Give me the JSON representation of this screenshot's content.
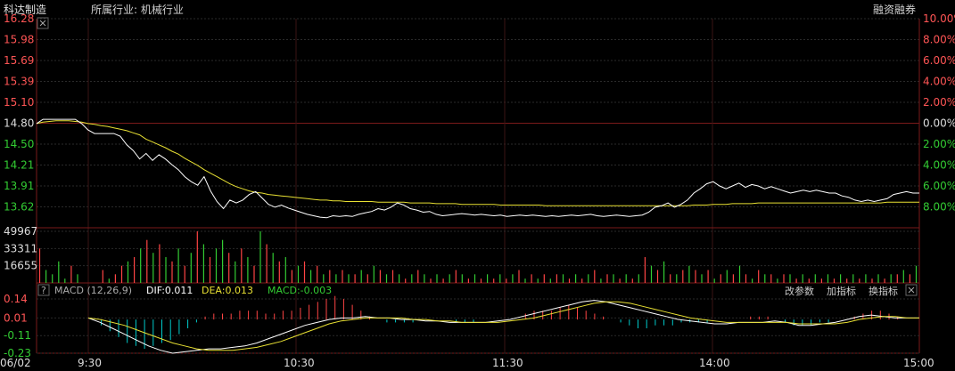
{
  "header": {
    "stock_name": "科达制造",
    "industry": "所属行业: 机械行业",
    "margin_label": "融资融券",
    "close_icon": "close-icon"
  },
  "price_axis": {
    "left_labels": [
      "16.28",
      "15.98",
      "15.69",
      "15.39",
      "15.10",
      "14.80",
      "14.50",
      "14.21",
      "13.91",
      "13.62"
    ],
    "right_labels": [
      "10.00%",
      "8.00%",
      "6.00%",
      "4.00%",
      "2.00%",
      "0.00%",
      "2.00%",
      "4.00%",
      "6.00%",
      "8.00%"
    ],
    "prev_close": 14.8
  },
  "volume_axis": {
    "labels": [
      "49967",
      "33311",
      "16655"
    ],
    "max": 49967
  },
  "macd_panel": {
    "help_label": "?",
    "title": "MACD (12,26,9)",
    "dif": "DIF:0.011",
    "dea": "DEA:0.013",
    "macd": "MACD:-0.003",
    "buttons": [
      "改参数",
      "加指标",
      "换指标"
    ],
    "axis_labels": [
      "0.14",
      "0.01",
      "-0.11",
      "-0.23"
    ],
    "range": [
      -0.23,
      0.14
    ]
  },
  "time_axis": {
    "labels": [
      "06/02",
      "9:30",
      "10:30",
      "11:30",
      "14:00",
      "15:00"
    ]
  },
  "colors": {
    "price_line": "#ffffff",
    "avg_line": "#e8e033",
    "up": "#ff4444",
    "down": "#33cc33",
    "dif_line": "#ffffff",
    "dea_line": "#e8e033",
    "hist_pos": "#ff4444",
    "hist_neg": "#00cccc",
    "grid": "#2a2a2a",
    "grid_strong": "#5a1010"
  },
  "chart_data": {
    "type": "line",
    "series": [
      {
        "values": [
          14.8,
          14.86,
          14.86,
          14.86,
          14.86,
          14.86,
          14.86,
          14.8,
          14.71,
          14.66,
          14.66,
          14.66,
          14.66,
          14.62,
          14.5,
          14.42,
          14.3,
          14.38,
          14.28,
          14.36,
          14.3,
          14.22,
          14.15,
          14.05,
          13.98,
          13.93,
          14.05,
          13.85,
          13.7,
          13.6,
          13.72,
          13.68,
          13.72,
          13.8,
          13.84,
          13.75,
          13.66,
          13.62,
          13.65,
          13.61,
          13.58,
          13.55,
          13.52,
          13.5,
          13.48,
          13.47,
          13.5,
          13.49,
          13.5,
          13.49,
          13.52,
          13.54,
          13.56,
          13.6,
          13.58,
          13.62,
          13.68,
          13.65,
          13.6,
          13.58,
          13.55,
          13.56,
          13.52,
          13.5,
          13.51,
          13.52,
          13.53,
          13.52,
          13.51,
          13.52,
          13.51,
          13.5,
          13.51,
          13.49,
          13.5,
          13.51,
          13.5,
          13.51,
          13.5,
          13.49,
          13.5,
          13.49,
          13.5,
          13.51,
          13.5,
          13.51,
          13.52,
          13.5,
          13.49,
          13.5,
          13.51,
          13.5,
          13.49,
          13.5,
          13.51,
          13.55,
          13.62,
          13.64,
          13.68,
          13.62,
          13.66,
          13.72,
          13.82,
          13.88,
          13.95,
          13.98,
          13.92,
          13.88,
          13.92,
          13.96,
          13.9,
          13.94,
          13.92,
          13.88,
          13.91,
          13.88,
          13.85,
          13.82,
          13.84,
          13.86,
          13.84,
          13.86,
          13.84,
          13.82,
          13.82,
          13.78,
          13.76,
          13.72,
          13.7,
          13.72,
          13.7,
          13.72,
          13.74,
          13.8,
          13.82,
          13.84,
          13.82,
          13.82
        ]
      },
      {
        "values": [
          14.8,
          14.82,
          14.83,
          14.84,
          14.84,
          14.84,
          14.83,
          14.82,
          14.8,
          14.79,
          14.77,
          14.76,
          14.74,
          14.72,
          14.7,
          14.67,
          14.64,
          14.58,
          14.54,
          14.5,
          14.46,
          14.41,
          14.37,
          14.31,
          14.26,
          14.21,
          14.15,
          14.1,
          14.05,
          14.0,
          13.95,
          13.91,
          13.88,
          13.85,
          13.83,
          13.82,
          13.8,
          13.79,
          13.78,
          13.77,
          13.76,
          13.75,
          13.74,
          13.73,
          13.72,
          13.72,
          13.71,
          13.71,
          13.7,
          13.7,
          13.7,
          13.7,
          13.7,
          13.69,
          13.69,
          13.69,
          13.69,
          13.69,
          13.68,
          13.68,
          13.68,
          13.68,
          13.67,
          13.67,
          13.67,
          13.67,
          13.66,
          13.66,
          13.66,
          13.66,
          13.66,
          13.66,
          13.65,
          13.65,
          13.65,
          13.65,
          13.65,
          13.65,
          13.65,
          13.64,
          13.64,
          13.64,
          13.64,
          13.64,
          13.64,
          13.64,
          13.64,
          13.64,
          13.64,
          13.64,
          13.64,
          13.64,
          13.64,
          13.64,
          13.64,
          13.64,
          13.64,
          13.64,
          13.64,
          13.64,
          13.64,
          13.64,
          13.65,
          13.65,
          13.65,
          13.66,
          13.66,
          13.66,
          13.67,
          13.67,
          13.67,
          13.67,
          13.68,
          13.68,
          13.68,
          13.68,
          13.68,
          13.68,
          13.68,
          13.68,
          13.68,
          13.68,
          13.68,
          13.68,
          13.68,
          13.68,
          13.68,
          13.68,
          13.68,
          13.68,
          13.68,
          13.68,
          13.69,
          13.69,
          13.69,
          13.69,
          13.69,
          13.69
        ]
      }
    ],
    "volume": [
      8,
      3,
      2,
      5,
      1,
      4,
      2,
      0,
      0,
      0,
      3,
      1,
      2,
      4,
      5,
      6,
      8,
      10,
      7,
      9,
      6,
      5,
      8,
      4,
      7,
      12,
      9,
      6,
      8,
      10,
      7,
      5,
      8,
      6,
      4,
      12,
      9,
      7,
      5,
      6,
      3,
      4,
      5,
      3,
      4,
      2,
      3,
      2,
      3,
      2,
      2,
      3,
      2,
      4,
      3,
      2,
      3,
      2,
      1,
      2,
      3,
      2,
      1,
      2,
      1,
      2,
      3,
      2,
      1,
      2,
      1,
      2,
      1,
      2,
      1,
      2,
      3,
      1,
      2,
      1,
      2,
      1,
      2,
      2,
      1,
      2,
      1,
      2,
      3,
      1,
      2,
      2,
      1,
      2,
      1,
      2,
      6,
      4,
      3,
      5,
      2,
      2,
      3,
      4,
      3,
      2,
      3,
      1,
      2,
      3,
      2,
      4,
      2,
      1,
      3,
      2,
      2,
      1,
      2,
      2,
      1,
      2,
      1,
      2,
      1,
      2,
      1,
      2,
      1,
      2,
      1,
      2,
      1,
      2,
      1,
      2,
      2,
      3,
      2,
      4
    ],
    "volume_up": [
      1,
      0,
      0,
      0,
      0,
      1,
      0,
      1,
      0,
      0,
      1,
      0,
      1,
      1,
      0,
      1,
      0,
      1,
      0,
      1,
      0,
      1,
      0,
      1,
      0,
      1,
      0,
      1,
      0,
      0,
      1,
      0,
      1,
      0,
      1,
      0,
      1,
      0,
      1,
      0,
      1,
      0,
      1,
      0,
      1,
      0,
      1,
      0,
      1,
      0,
      1,
      0,
      1,
      0,
      1,
      0,
      1,
      0,
      1,
      0,
      1,
      0,
      1,
      0,
      1,
      0,
      1,
      0,
      1,
      0,
      1,
      0,
      1,
      0,
      1,
      0,
      1,
      0,
      1,
      0,
      1,
      0,
      1,
      0,
      1,
      0,
      1,
      0,
      1,
      0,
      1,
      0,
      1,
      0,
      1,
      0,
      1,
      0,
      1,
      0,
      1,
      0,
      1,
      0,
      1,
      0,
      1,
      0,
      1,
      0,
      1,
      0,
      1,
      0,
      1,
      0,
      1,
      0,
      1,
      0,
      1,
      0,
      1,
      0,
      1,
      0,
      1,
      0,
      1,
      0,
      1,
      0,
      1,
      0,
      1,
      0,
      1,
      0,
      1,
      0,
      1,
      0
    ],
    "macd_hist": [
      0,
      -0.02,
      -0.04,
      -0.06,
      -0.08,
      -0.09,
      -0.1,
      -0.09,
      -0.08,
      -0.07,
      -0.05,
      -0.03,
      -0.01,
      0.01,
      0.02,
      0.02,
      0.02,
      0.03,
      0.03,
      0.03,
      0.02,
      0.02,
      0.03,
      0.03,
      0.04,
      0.05,
      0.06,
      0.07,
      0.08,
      0.07,
      0.05,
      0.03,
      0.01,
      0,
      -0.01,
      -0.01,
      -0.01,
      -0.01,
      0,
      0,
      0,
      0,
      -0.01,
      -0.01,
      -0.01,
      0,
      0,
      0,
      0,
      0,
      0.02,
      0.03,
      0.03,
      0.03,
      0.04,
      0.05,
      0.04,
      0.03,
      0.02,
      0.01,
      0,
      -0.01,
      -0.02,
      -0.03,
      -0.03,
      -0.02,
      -0.02,
      -0.02,
      -0.01,
      -0.01,
      -0.01,
      -0.01,
      0,
      0,
      0,
      0,
      0.01,
      0.01,
      0.01,
      0,
      -0.01,
      -0.02,
      -0.02,
      -0.02,
      -0.01,
      -0.01,
      0,
      0,
      0.01,
      0.02,
      0.03,
      0.03,
      0.02,
      0.01,
      0,
      0
    ],
    "dif": [
      0.01,
      -0.02,
      -0.06,
      -0.1,
      -0.14,
      -0.18,
      -0.21,
      -0.23,
      -0.22,
      -0.21,
      -0.2,
      -0.2,
      -0.19,
      -0.18,
      -0.16,
      -0.13,
      -0.1,
      -0.07,
      -0.04,
      -0.02,
      0,
      0.01,
      0.01,
      0.02,
      0.01,
      0.01,
      0,
      0,
      -0.01,
      -0.01,
      -0.02,
      -0.02,
      -0.02,
      -0.02,
      -0.01,
      0,
      0.02,
      0.04,
      0.06,
      0.08,
      0.1,
      0.12,
      0.13,
      0.12,
      0.1,
      0.08,
      0.06,
      0.04,
      0.02,
      0,
      -0.01,
      -0.02,
      -0.03,
      -0.03,
      -0.02,
      -0.02,
      -0.02,
      -0.01,
      -0.02,
      -0.04,
      -0.04,
      -0.03,
      -0.02,
      0,
      0.02,
      0.03,
      0.02,
      0.01,
      0.01,
      0.01
    ],
    "dea": [
      0.01,
      0,
      -0.02,
      -0.04,
      -0.07,
      -0.1,
      -0.13,
      -0.16,
      -0.18,
      -0.2,
      -0.21,
      -0.21,
      -0.21,
      -0.2,
      -0.19,
      -0.17,
      -0.15,
      -0.12,
      -0.09,
      -0.06,
      -0.03,
      -0.01,
      0,
      0.01,
      0.01,
      0.01,
      0.01,
      0,
      0,
      -0.01,
      -0.01,
      -0.02,
      -0.02,
      -0.02,
      -0.02,
      -0.01,
      0,
      0.01,
      0.03,
      0.05,
      0.07,
      0.09,
      0.11,
      0.12,
      0.12,
      0.11,
      0.09,
      0.07,
      0.05,
      0.03,
      0.01,
      0,
      -0.01,
      -0.02,
      -0.02,
      -0.02,
      -0.02,
      -0.02,
      -0.02,
      -0.03,
      -0.03,
      -0.03,
      -0.03,
      -0.02,
      0,
      0.01,
      0.02,
      0.02,
      0.01,
      0.01
    ]
  }
}
